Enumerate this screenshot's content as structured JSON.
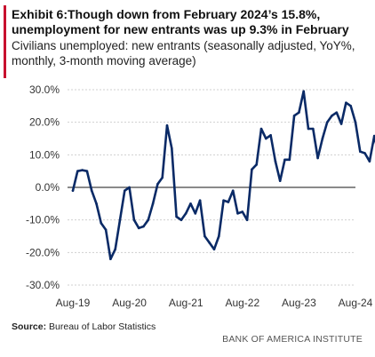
{
  "header": {
    "title_line1": "Exhibit 6:Though down from February 2024’s 15.8%,",
    "title_line2": "unemployment for new entrants was up 9.3% in February",
    "subtitle_line1": "Civilians unemployed: new entrants (seasonally adjusted, YoY%,",
    "subtitle_line2": "monthly, 3-month moving average)"
  },
  "footer": {
    "source_label": "Source:",
    "source_text": " Bureau of Labor Statistics",
    "brand": "BANK OF AMERICA INSTITUTE"
  },
  "colors": {
    "accent": "#c8102e",
    "line": "#0a2a66",
    "grid": "#cfcfcf",
    "zero": "#444444"
  },
  "chart_data": {
    "type": "line",
    "title": "",
    "xlabel": "",
    "ylabel": "",
    "ylim": [
      -30,
      30
    ],
    "yticks": [
      "30.0%",
      "20.0%",
      "10.0%",
      "0.0%",
      "-10.0%",
      "-20.0%",
      "-30.0%"
    ],
    "ytick_values": [
      30,
      20,
      10,
      0,
      -10,
      -20,
      -30
    ],
    "xticks": [
      "Aug-19",
      "Aug-20",
      "Aug-21",
      "Aug-22",
      "Aug-23",
      "Aug-24"
    ],
    "xtick_index": [
      0,
      12,
      24,
      36,
      48,
      60
    ],
    "grid": true,
    "series": [
      {
        "values": [
          -1,
          5,
          5.3,
          5,
          -1,
          -5,
          -11,
          -13,
          -22,
          -19,
          -10,
          -1,
          0,
          -10,
          -12.5,
          -12,
          -10,
          -5,
          1,
          3,
          19,
          12,
          -9,
          -10,
          -8,
          -5,
          -8,
          -4,
          -15,
          -17,
          -19,
          -15,
          -4,
          -4.5,
          -1,
          -8,
          -7.5,
          -10,
          5.5,
          7,
          18,
          15,
          16,
          8,
          2,
          8.5,
          8.5,
          22,
          23,
          29.5,
          18,
          18,
          9,
          15,
          20,
          22,
          23,
          19.5,
          26,
          25,
          20,
          11,
          10.5,
          8,
          15.8,
          9.3
        ]
      }
    ]
  }
}
